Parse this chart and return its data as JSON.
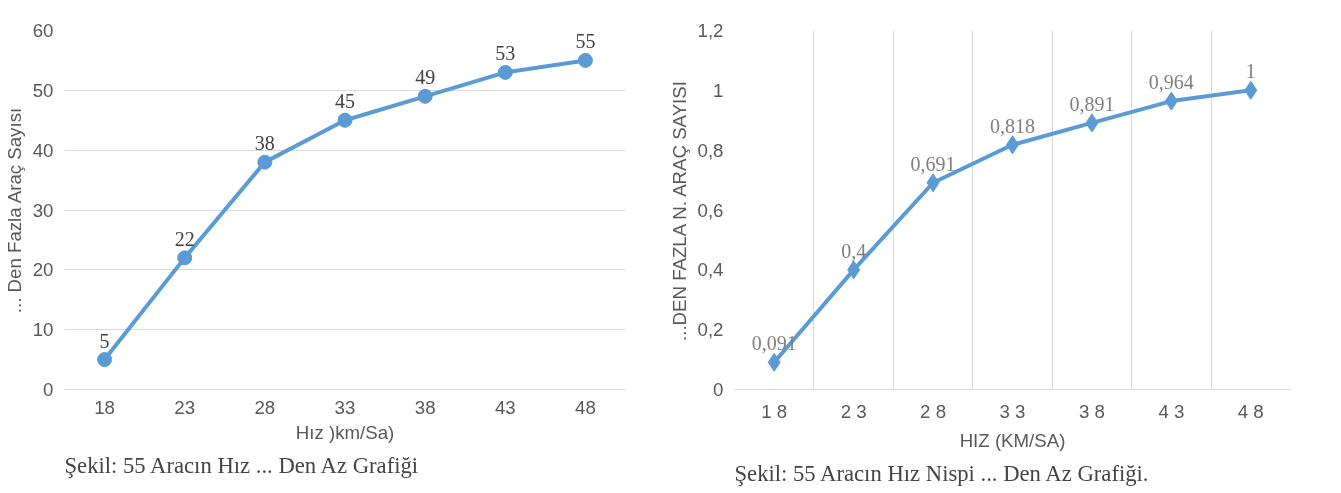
{
  "chart_data": [
    {
      "type": "line",
      "categories": [
        "18",
        "23",
        "28",
        "33",
        "38",
        "43",
        "48"
      ],
      "xlabel": "Hız )km/Sa)",
      "ylabel": "... Den Fazla Araç Sayısı",
      "series": [
        {
          "color": "#5b9bd5",
          "values": [
            5,
            22,
            38,
            45,
            49,
            53,
            55
          ]
        }
      ],
      "ylim": [
        0,
        60
      ],
      "yticks": [
        0,
        10,
        20,
        30,
        40,
        50,
        60
      ],
      "grid": "y",
      "marker": "circle",
      "data_labels": true,
      "annotations": [
        "Şekil: 55 Aracın Hız ... Den Az  Grafiği"
      ]
    },
    {
      "type": "line",
      "categories": [
        "1 8",
        "2 3",
        "2 8",
        "3 3",
        "3 8",
        "4 3",
        "4 8"
      ],
      "xlabel": "HIZ (KM/SA)",
      "ylabel": "...DEN FAZLA N. ARAÇ SAYISI",
      "series": [
        {
          "color": "#5b9bd5",
          "values": [
            0.091,
            0.4,
            0.691,
            0.818,
            0.891,
            0.964,
            1
          ],
          "value_labels": [
            "0,091",
            "0,4",
            "0,691",
            "0,818",
            "0,891",
            "0,964",
            "1"
          ]
        }
      ],
      "ylim": [
        0,
        1.2
      ],
      "yticks": [
        0,
        {
          "value": 0.2,
          "label": "0,2"
        },
        {
          "value": 0.4,
          "label": "0,4"
        },
        {
          "value": 0.6,
          "label": "0,6"
        },
        {
          "value": 0.8,
          "label": "0,8"
        },
        1,
        {
          "value": 1.2,
          "label": "1,2"
        }
      ],
      "grid": "x",
      "marker": "diamond",
      "annotations": [
        "Şekil: 55 Aracın Hız Nispi ... Den Az Grafiği."
      ]
    }
  ]
}
